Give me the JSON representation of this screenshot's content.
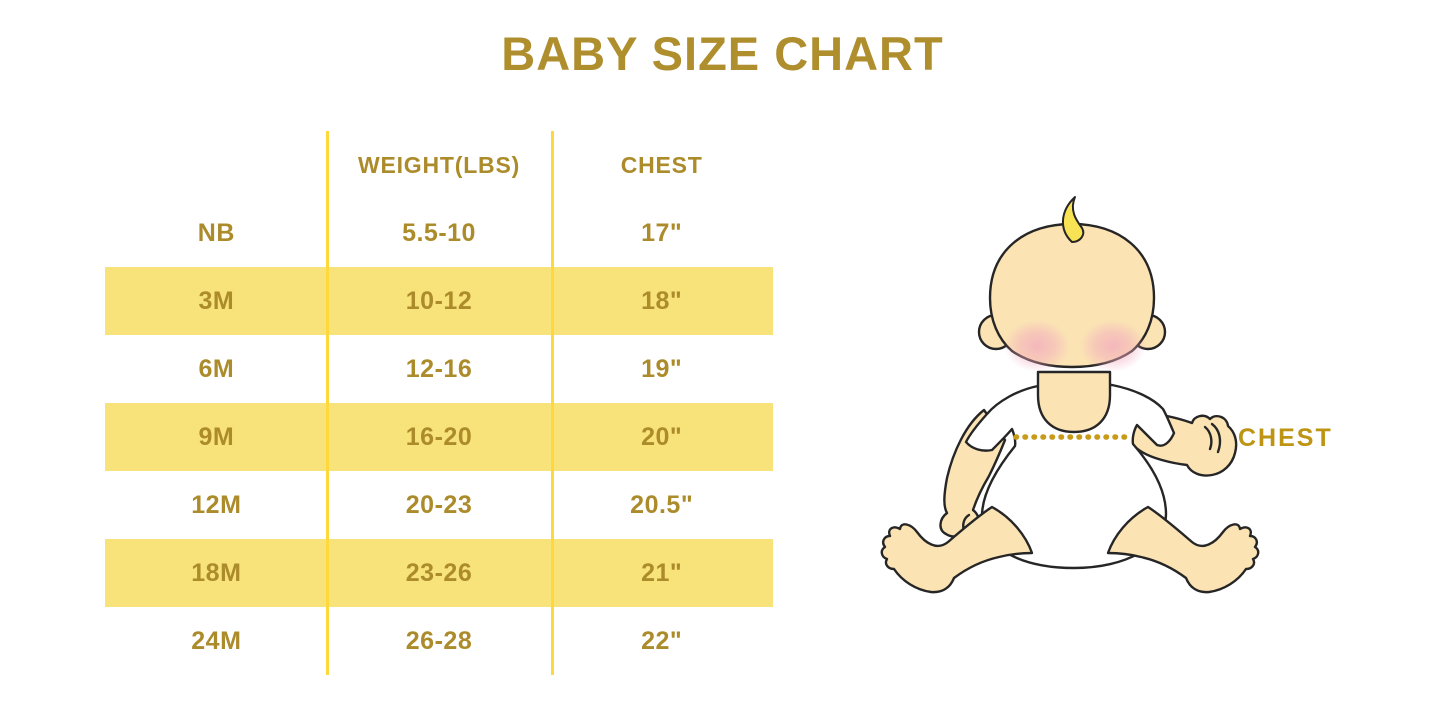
{
  "title": "BABY SIZE CHART",
  "table": {
    "headers": [
      "",
      "WEIGHT(LBS)",
      "CHEST"
    ],
    "rows": [
      {
        "size": "NB",
        "weight": "5.5-10",
        "chest": "17\""
      },
      {
        "size": "3M",
        "weight": "10-12",
        "chest": "18\""
      },
      {
        "size": "6M",
        "weight": "12-16",
        "chest": "19\""
      },
      {
        "size": "9M",
        "weight": "16-20",
        "chest": "20\""
      },
      {
        "size": "12M",
        "weight": "20-23",
        "chest": "20.5\""
      },
      {
        "size": "18M",
        "weight": "23-26",
        "chest": "21\""
      },
      {
        "size": "24M",
        "weight": "26-28",
        "chest": "22\""
      }
    ]
  },
  "illustration": {
    "chest_label": "CHEST"
  },
  "colors": {
    "title_gold": "#AF8E2E",
    "table_text_gold": "#AC8B2B",
    "row_yellow": "#F8E27A",
    "divider_yellow": "#FFD93B",
    "label_gold": "#BE9414",
    "dotted_line_gold": "#C79A18",
    "skin": "#FBE3B4",
    "blush_pink": "#F2A9BE",
    "hair_yellow": "#F8E354",
    "outline": "#262626"
  },
  "chart_data": {
    "type": "table",
    "title": "BABY SIZE CHART",
    "columns": [
      "",
      "WEIGHT(LBS)",
      "CHEST"
    ],
    "rows": [
      [
        "NB",
        "5.5-10",
        "17\""
      ],
      [
        "3M",
        "10-12",
        "18\""
      ],
      [
        "6M",
        "12-16",
        "19\""
      ],
      [
        "9M",
        "16-20",
        "20\""
      ],
      [
        "12M",
        "20-23",
        "20.5\""
      ],
      [
        "18M",
        "23-26",
        "21\""
      ],
      [
        "24M",
        "26-28",
        "22\""
      ]
    ],
    "annotations": [
      "CHEST measurement shown as dotted line across baby's chest"
    ],
    "layout": "header row and alternating data rows highlighted yellow; gold text; baby illustration at right"
  }
}
